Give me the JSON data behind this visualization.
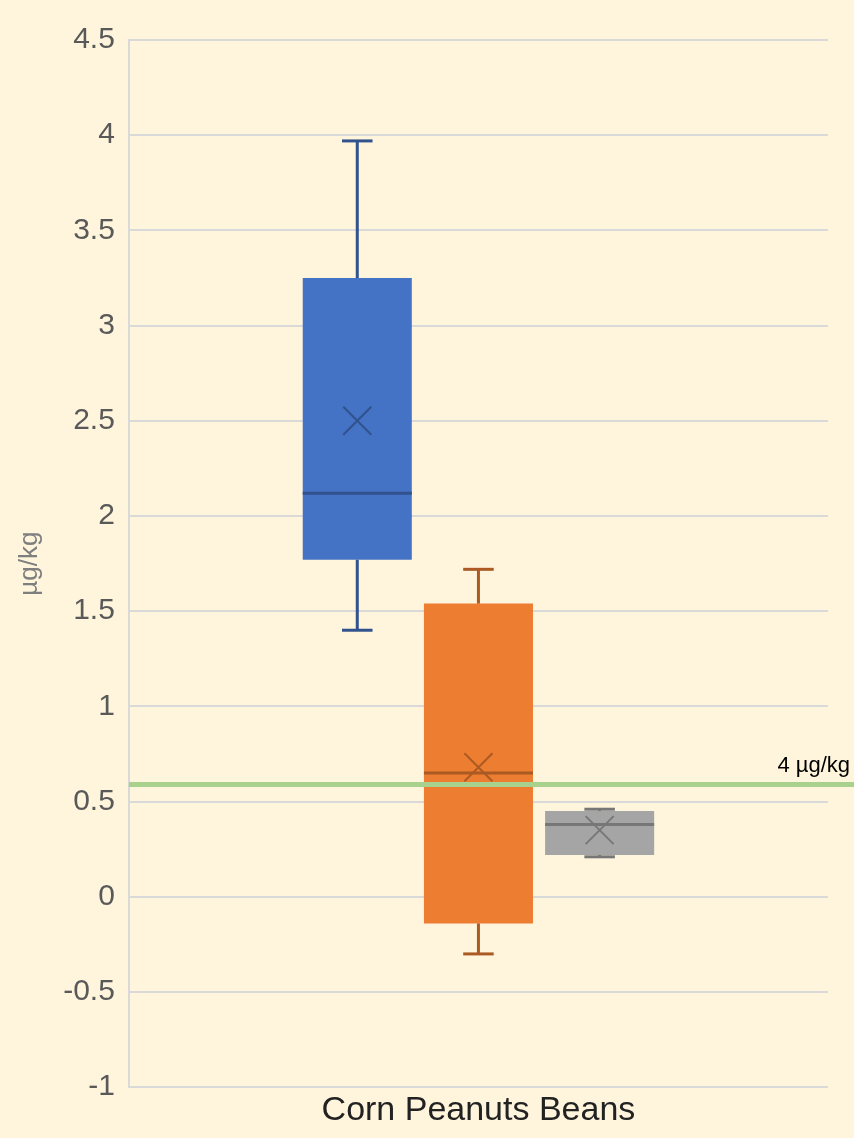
{
  "chart_data": {
    "type": "box",
    "categories": [
      "Corn Peanuts Beans"
    ],
    "ylabel": "µg/kg",
    "ylim": [
      -1,
      4.5
    ],
    "yticks": [
      -1,
      -0.5,
      0,
      0.5,
      1,
      1.5,
      2,
      2.5,
      3,
      3.5,
      4,
      4.5
    ],
    "grid": "y",
    "series": [
      {
        "color": "#4472c4",
        "boxes": [
          {
            "low": 1.4,
            "q1": 1.77,
            "median": 2.12,
            "q3": 3.25,
            "high": 3.97,
            "mean": 2.5
          }
        ]
      },
      {
        "color": "#ed7d31",
        "boxes": [
          {
            "low": -0.3,
            "q1": -0.14,
            "median": 0.65,
            "q3": 1.54,
            "high": 1.72,
            "mean": 0.68
          }
        ]
      },
      {
        "color": "#a5a5a5",
        "boxes": [
          {
            "low": 0.21,
            "q1": 0.22,
            "median": 0.38,
            "q3": 0.45,
            "high": 0.46,
            "mean": 0.35
          }
        ]
      }
    ],
    "ref_lines": [
      {
        "axis": "y",
        "value": 0.59,
        "label": "4 µg/kg",
        "color": "#a9d18e"
      }
    ]
  }
}
